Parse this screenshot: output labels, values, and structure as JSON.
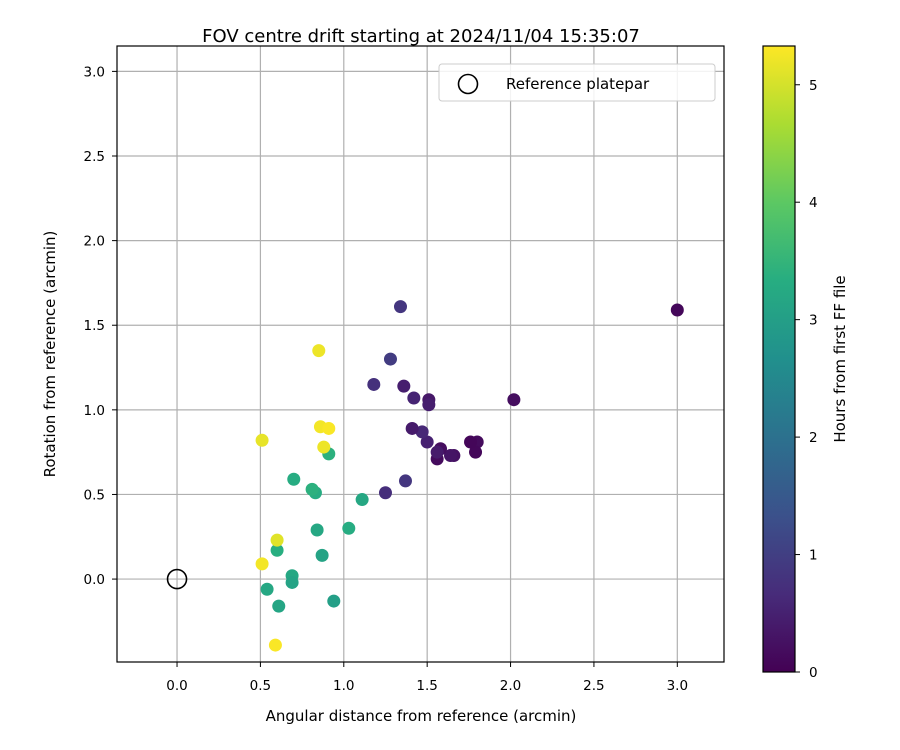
{
  "chart_data": {
    "type": "scatter",
    "title": "FOV centre drift starting at 2024/11/04 15:35:07",
    "xlabel": "Angular distance from reference (arcmin)",
    "ylabel": "Rotation from reference (arcmin)",
    "xlim": [
      -0.36,
      3.28
    ],
    "ylim": [
      -0.49,
      3.15
    ],
    "xticks": [
      0.0,
      0.5,
      1.0,
      1.5,
      2.0,
      2.5,
      3.0
    ],
    "yticks": [
      0.0,
      0.5,
      1.0,
      1.5,
      2.0,
      2.5,
      3.0
    ],
    "xtick_labels": [
      "0.0",
      "0.5",
      "1.0",
      "1.5",
      "2.0",
      "2.5",
      "3.0"
    ],
    "ytick_labels": [
      "0.0",
      "0.5",
      "1.0",
      "1.5",
      "2.0",
      "2.5",
      "3.0"
    ],
    "grid": true,
    "colormap": "viridis",
    "colorbar": {
      "label": "Hours from first FF file",
      "range": [
        0,
        5.33
      ],
      "ticks": [
        0,
        1,
        2,
        3,
        4,
        5
      ],
      "tick_labels": [
        "0",
        "1",
        "2",
        "3",
        "4",
        "5"
      ]
    },
    "legend": {
      "position": "top-right",
      "entries": [
        {
          "label": "Reference platepar",
          "marker": "open-circle",
          "color": "#000000"
        }
      ]
    },
    "reference_point": {
      "x": 0.0,
      "y": 0.0
    },
    "points": [
      {
        "x": 3.0,
        "y": 1.59,
        "c": 0.1
      },
      {
        "x": 2.02,
        "y": 1.06,
        "c": 0.2
      },
      {
        "x": 1.8,
        "y": 0.81,
        "c": 0.15
      },
      {
        "x": 1.79,
        "y": 0.75,
        "c": 0.1
      },
      {
        "x": 1.76,
        "y": 0.81,
        "c": 0.08
      },
      {
        "x": 1.66,
        "y": 0.73,
        "c": 0.25
      },
      {
        "x": 1.64,
        "y": 0.73,
        "c": 0.3
      },
      {
        "x": 1.58,
        "y": 0.77,
        "c": 0.2
      },
      {
        "x": 1.56,
        "y": 0.71,
        "c": 0.15
      },
      {
        "x": 1.56,
        "y": 0.75,
        "c": 0.4
      },
      {
        "x": 1.51,
        "y": 1.06,
        "c": 0.35
      },
      {
        "x": 1.51,
        "y": 1.03,
        "c": 0.45
      },
      {
        "x": 1.5,
        "y": 0.81,
        "c": 0.5
      },
      {
        "x": 1.47,
        "y": 0.87,
        "c": 0.6
      },
      {
        "x": 1.41,
        "y": 0.89,
        "c": 0.4
      },
      {
        "x": 1.42,
        "y": 1.07,
        "c": 0.55
      },
      {
        "x": 1.36,
        "y": 1.14,
        "c": 0.45
      },
      {
        "x": 1.34,
        "y": 1.61,
        "c": 0.85
      },
      {
        "x": 1.28,
        "y": 1.3,
        "c": 0.95
      },
      {
        "x": 1.18,
        "y": 1.15,
        "c": 0.75
      },
      {
        "x": 1.37,
        "y": 0.58,
        "c": 0.85
      },
      {
        "x": 1.25,
        "y": 0.51,
        "c": 0.7
      },
      {
        "x": 1.11,
        "y": 0.47,
        "c": 3.2
      },
      {
        "x": 1.03,
        "y": 0.3,
        "c": 3.3
      },
      {
        "x": 0.91,
        "y": 0.74,
        "c": 3.4
      },
      {
        "x": 0.94,
        "y": -0.13,
        "c": 3.0
      },
      {
        "x": 0.87,
        "y": 0.14,
        "c": 3.1
      },
      {
        "x": 0.84,
        "y": 0.29,
        "c": 3.2
      },
      {
        "x": 0.83,
        "y": 0.51,
        "c": 3.3
      },
      {
        "x": 0.81,
        "y": 0.53,
        "c": 3.4
      },
      {
        "x": 0.7,
        "y": 0.59,
        "c": 3.3
      },
      {
        "x": 0.69,
        "y": 0.02,
        "c": 3.2
      },
      {
        "x": 0.69,
        "y": -0.02,
        "c": 3.1
      },
      {
        "x": 0.61,
        "y": -0.16,
        "c": 3.15
      },
      {
        "x": 0.6,
        "y": 0.17,
        "c": 3.35
      },
      {
        "x": 0.54,
        "y": -0.06,
        "c": 3.2
      },
      {
        "x": 0.85,
        "y": 1.35,
        "c": 5.2
      },
      {
        "x": 0.86,
        "y": 0.9,
        "c": 5.25
      },
      {
        "x": 0.91,
        "y": 0.89,
        "c": 5.3
      },
      {
        "x": 0.88,
        "y": 0.78,
        "c": 5.2
      },
      {
        "x": 0.51,
        "y": 0.82,
        "c": 5.15
      },
      {
        "x": 0.6,
        "y": 0.23,
        "c": 5.1
      },
      {
        "x": 0.51,
        "y": 0.09,
        "c": 5.25
      },
      {
        "x": 0.59,
        "y": -0.39,
        "c": 5.3
      }
    ]
  }
}
